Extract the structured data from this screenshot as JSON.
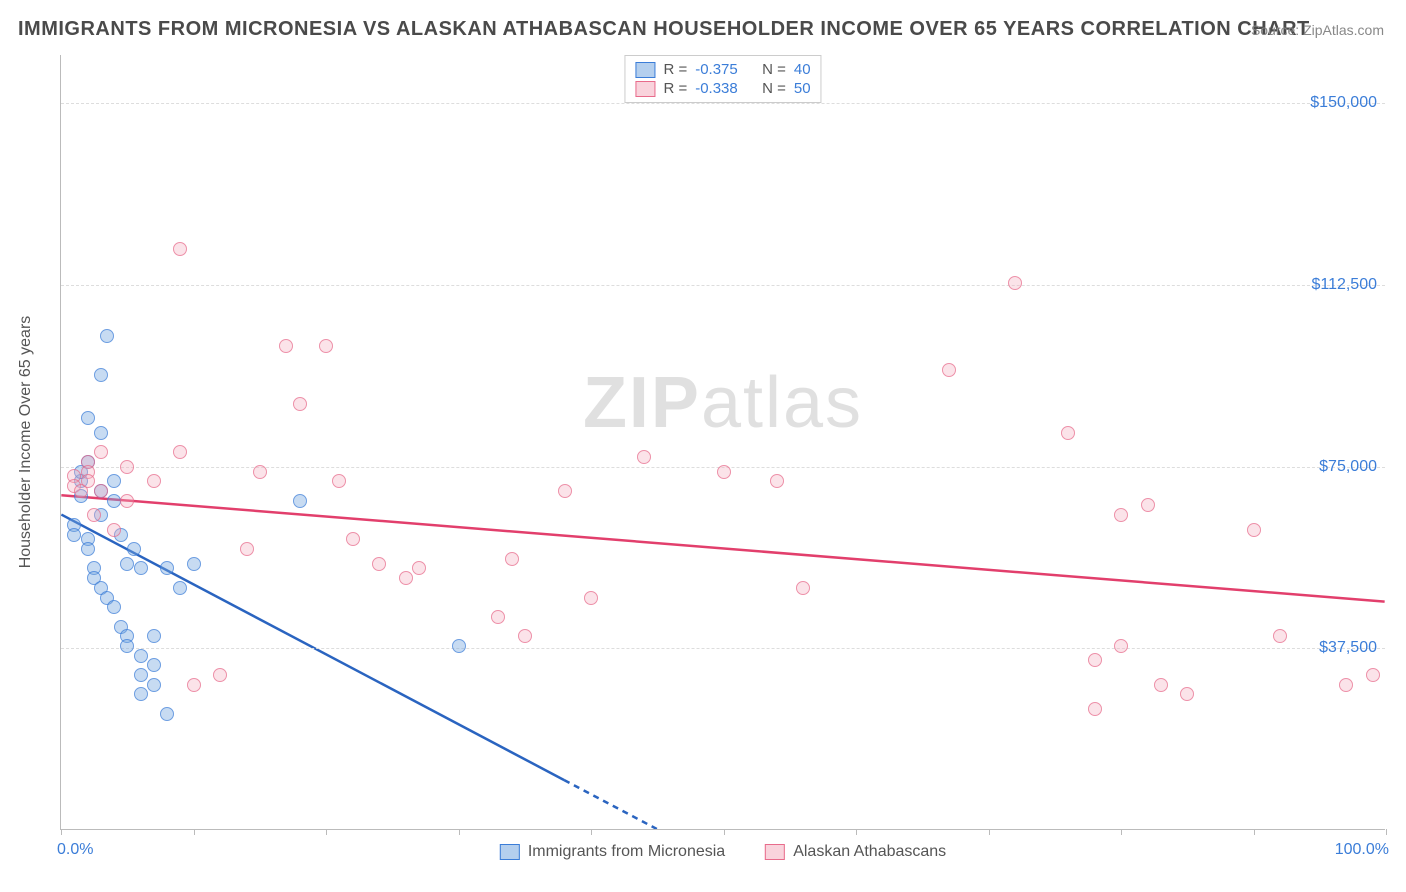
{
  "title": "IMMIGRANTS FROM MICRONESIA VS ALASKAN ATHABASCAN HOUSEHOLDER INCOME OVER 65 YEARS CORRELATION CHART",
  "source_prefix": "Source: ",
  "source_name": "ZipAtlas.com",
  "watermark_left": "ZIP",
  "watermark_right": "atlas",
  "y_axis_title": "Householder Income Over 65 years",
  "chart": {
    "type": "scatter",
    "background_color": "#ffffff",
    "grid_color": "#dddddd",
    "axis_color": "#bbbbbb",
    "xlim": [
      0,
      100
    ],
    "ylim": [
      0,
      160000
    ],
    "y_gridlines": [
      37500,
      75000,
      112500,
      150000
    ],
    "y_tick_labels": [
      "$37,500",
      "$75,000",
      "$112,500",
      "$150,000"
    ],
    "x_ticks": [
      0,
      10,
      20,
      30,
      40,
      50,
      60,
      70,
      80,
      90,
      100
    ],
    "x_left_label": "0.0%",
    "x_right_label": "100.0%",
    "series": [
      {
        "name": "Immigrants from Micronesia",
        "color_fill": "rgba(119,167,224,0.55)",
        "color_stroke": "#3b7dd8",
        "line_color": "#2a64c0",
        "line_width": 2.5,
        "R": "-0.375",
        "N": "40",
        "trend": {
          "x1": 0,
          "y1": 65000,
          "x2": 45,
          "y2": 0,
          "dash_from_x": 38
        },
        "points": [
          [
            1,
            63000
          ],
          [
            1,
            61000
          ],
          [
            1.5,
            72000
          ],
          [
            1.5,
            69000
          ],
          [
            1.5,
            74000
          ],
          [
            2,
            76000
          ],
          [
            2,
            60000
          ],
          [
            2,
            58000
          ],
          [
            2,
            85000
          ],
          [
            2.5,
            54000
          ],
          [
            2.5,
            52000
          ],
          [
            3,
            50000
          ],
          [
            3,
            65000
          ],
          [
            3,
            82000
          ],
          [
            3,
            70000
          ],
          [
            3.5,
            48000
          ],
          [
            3.5,
            102000
          ],
          [
            4,
            46000
          ],
          [
            4,
            68000
          ],
          [
            4,
            72000
          ],
          [
            4.5,
            42000
          ],
          [
            4.5,
            61000
          ],
          [
            5,
            40000
          ],
          [
            5,
            38000
          ],
          [
            5,
            55000
          ],
          [
            5.5,
            58000
          ],
          [
            6,
            36000
          ],
          [
            6,
            54000
          ],
          [
            6,
            32000
          ],
          [
            6,
            28000
          ],
          [
            7,
            34000
          ],
          [
            7,
            40000
          ],
          [
            7,
            30000
          ],
          [
            8,
            54000
          ],
          [
            8,
            24000
          ],
          [
            9,
            50000
          ],
          [
            10,
            55000
          ],
          [
            18,
            68000
          ],
          [
            30,
            38000
          ],
          [
            3,
            94000
          ]
        ]
      },
      {
        "name": "Alaskan Athabascans",
        "color_fill": "rgba(244,174,191,0.45)",
        "color_stroke": "#e86b8b",
        "line_color": "#e23f6c",
        "line_width": 2.5,
        "R": "-0.338",
        "N": "50",
        "trend": {
          "x1": 0,
          "y1": 69000,
          "x2": 100,
          "y2": 47000
        },
        "points": [
          [
            1,
            73000
          ],
          [
            1,
            71000
          ],
          [
            1.5,
            70000
          ],
          [
            2,
            76000
          ],
          [
            2,
            74000
          ],
          [
            2,
            72000
          ],
          [
            2.5,
            65000
          ],
          [
            3,
            70000
          ],
          [
            3,
            78000
          ],
          [
            4,
            62000
          ],
          [
            5,
            75000
          ],
          [
            5,
            68000
          ],
          [
            7,
            72000
          ],
          [
            9,
            120000
          ],
          [
            9,
            78000
          ],
          [
            10,
            30000
          ],
          [
            12,
            32000
          ],
          [
            15,
            74000
          ],
          [
            14,
            58000
          ],
          [
            17,
            100000
          ],
          [
            18,
            88000
          ],
          [
            20,
            100000
          ],
          [
            21,
            72000
          ],
          [
            22,
            60000
          ],
          [
            24,
            55000
          ],
          [
            26,
            52000
          ],
          [
            27,
            54000
          ],
          [
            33,
            44000
          ],
          [
            34,
            56000
          ],
          [
            35,
            40000
          ],
          [
            38,
            70000
          ],
          [
            40,
            48000
          ],
          [
            44,
            77000
          ],
          [
            50,
            74000
          ],
          [
            54,
            72000
          ],
          [
            56,
            50000
          ],
          [
            67,
            95000
          ],
          [
            72,
            113000
          ],
          [
            76,
            82000
          ],
          [
            78,
            25000
          ],
          [
            78,
            35000
          ],
          [
            80,
            65000
          ],
          [
            82,
            67000
          ],
          [
            83,
            30000
          ],
          [
            85,
            28000
          ],
          [
            90,
            62000
          ],
          [
            92,
            40000
          ],
          [
            97,
            30000
          ],
          [
            99,
            32000
          ],
          [
            80,
            38000
          ]
        ]
      }
    ]
  },
  "legend_labels": {
    "R": "R =",
    "N": "N ="
  }
}
